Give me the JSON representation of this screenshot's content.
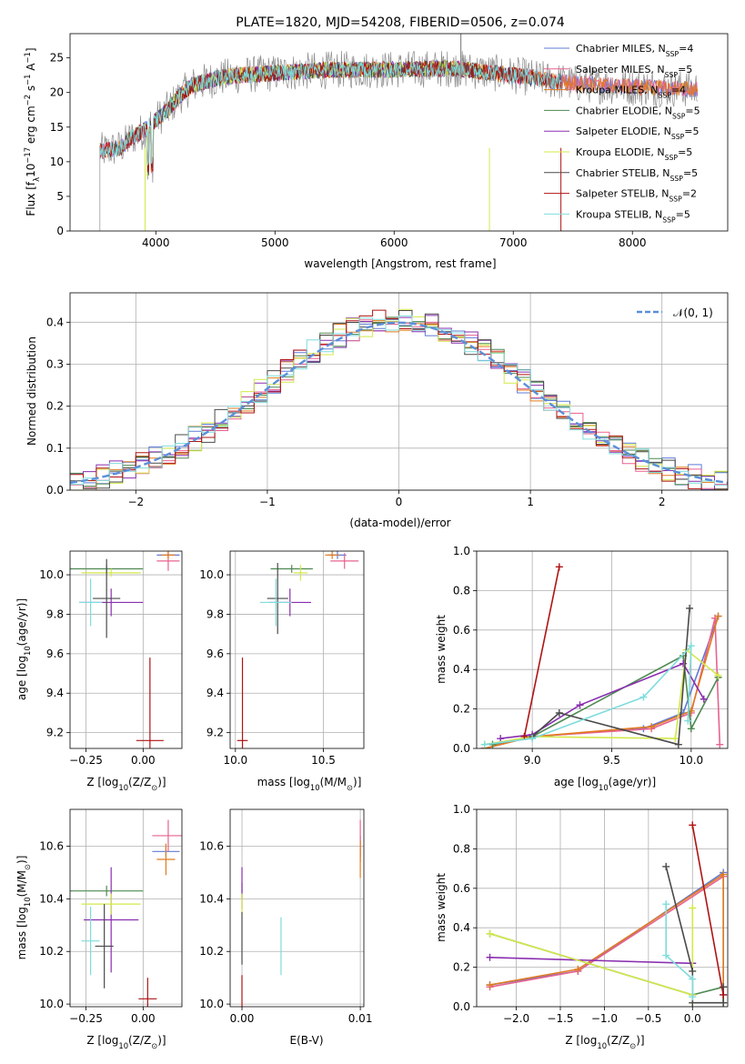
{
  "figure_title": "PLATE=1820, MJD=54208, FIBERID=0506, z=0.074",
  "colors": {
    "Chabrier MILES": "#5f7bd6",
    "Salpeter MILES": "#e8628f",
    "Kroupa MILES": "#e07b1f",
    "Chabrier ELODIE": "#4e8a52",
    "Salpeter ELODIE": "#8a2fb0",
    "Kroupa ELODIE": "#d4e84a",
    "Chabrier STELIB": "#4a4a4a",
    "Salpeter STELIB": "#b01313",
    "Kroupa STELIB": "#7fdcdc",
    "normal_curve": "#5b8fd9",
    "grid": "#b0b0b0"
  },
  "chart_data": [
    {
      "id": "spectrum",
      "type": "line",
      "title": "PLATE=1820, MJD=54208, FIBERID=0506, z=0.074",
      "xlabel": "wavelength [Angstrom, rest frame]",
      "ylabel_parts": [
        "Flux [f",
        "λ",
        "10",
        "−17",
        " erg cm",
        "−2",
        " s",
        "−1",
        " A",
        "−1",
        "]"
      ],
      "xlim": [
        3280,
        8800
      ],
      "ylim": [
        0,
        28.5
      ],
      "xticks": [
        4000,
        5000,
        6000,
        7000,
        8000
      ],
      "yticks": [
        0,
        5,
        10,
        15,
        20,
        25
      ],
      "grid": false,
      "legend_position": "top-right",
      "legend": [
        {
          "model": "Chabrier MILES",
          "nssp": "4"
        },
        {
          "model": "Salpeter MILES",
          "nssp": "5"
        },
        {
          "model": "Kroupa MILES",
          "nssp": "4"
        },
        {
          "model": "Chabrier ELODIE",
          "nssp": "5"
        },
        {
          "model": "Salpeter ELODIE",
          "nssp": "5"
        },
        {
          "model": "Kroupa ELODIE",
          "nssp": "5"
        },
        {
          "model": "Chabrier STELIB",
          "nssp": "5"
        },
        {
          "model": "Salpeter STELIB",
          "nssp": "2"
        },
        {
          "model": "Kroupa STELIB",
          "nssp": "5"
        }
      ],
      "continuum_x": [
        3530,
        3700,
        3800,
        3900,
        4000,
        4100,
        4200,
        4300,
        4500,
        4700,
        5000,
        5500,
        6000,
        6500,
        7000,
        7500,
        8000,
        8500
      ],
      "continuum_y": [
        11.5,
        12.0,
        13.5,
        14.5,
        16.0,
        17.5,
        19.5,
        21.0,
        22.0,
        22.5,
        22.8,
        23.3,
        23.3,
        23.5,
        22.5,
        21.3,
        20.8,
        20.5
      ],
      "range_x": {
        "Chabrier MILES": [
          3530,
          8550
        ],
        "Salpeter MILES": [
          3530,
          8550
        ],
        "Kroupa MILES": [
          3530,
          8550
        ],
        "Chabrier ELODIE": [
          3910,
          6800
        ],
        "Salpeter ELODIE": [
          3910,
          6800
        ],
        "Kroupa ELODIE": [
          3910,
          6800
        ],
        "Chabrier STELIB": [
          3530,
          7400
        ],
        "Salpeter STELIB": [
          3530,
          7400
        ],
        "Kroupa STELIB": [
          3530,
          7400
        ]
      }
    },
    {
      "id": "residuals",
      "type": "line",
      "xlabel": "(data-model)/error",
      "ylabel": "Normed distribution",
      "xlim": [
        -2.5,
        2.5
      ],
      "ylim": [
        0,
        0.47
      ],
      "xticks": [
        -2,
        -1,
        0,
        1,
        2
      ],
      "yticks": [
        0.0,
        0.1,
        0.2,
        0.3,
        0.4
      ],
      "grid": true,
      "legend_position": "top-right",
      "legend": [
        {
          "label": "𝒩(0, 1)",
          "style": "dashed"
        }
      ],
      "bin_width": 0.1
    },
    {
      "id": "age_vs_Z",
      "type": "scatter",
      "xlabel_parts": [
        "Z [log",
        "10",
        "(Z/Z",
        "⊙",
        ")]"
      ],
      "ylabel_parts": [
        "age  [log",
        "10",
        "(age/yr)]"
      ],
      "xlim": [
        -0.32,
        0.17
      ],
      "ylim": [
        9.12,
        10.12
      ],
      "xticks": [
        -0.25,
        0.0
      ],
      "xticklabels": [
        "−0.25",
        "0.00"
      ],
      "yticks": [
        9.2,
        9.4,
        9.6,
        9.8,
        10.0
      ],
      "grid": true,
      "points": [
        {
          "model": "Chabrier MILES",
          "x": 0.11,
          "xerr": 0.05,
          "y": 10.1,
          "yerr": 0.01
        },
        {
          "model": "Salpeter MILES",
          "x": 0.11,
          "xerr": 0.05,
          "y": 10.07,
          "yerr": 0.05
        },
        {
          "model": "Kroupa MILES",
          "x": 0.11,
          "xerr": 0.03,
          "y": 10.1,
          "yerr": 0.02
        },
        {
          "model": "Chabrier ELODIE",
          "x": -0.16,
          "xerr": 0.16,
          "y": 10.03,
          "yerr": 0.02
        },
        {
          "model": "Salpeter ELODIE",
          "x": -0.14,
          "xerr": 0.14,
          "y": 9.86,
          "yerr": 0.07
        },
        {
          "model": "Kroupa ELODIE",
          "x": -0.14,
          "xerr": 0.13,
          "y": 10.01,
          "yerr": 0.02
        },
        {
          "model": "Chabrier STELIB",
          "x": -0.16,
          "xerr": 0.06,
          "y": 9.88,
          "yerr": 0.2
        },
        {
          "model": "Salpeter STELIB",
          "x": 0.03,
          "xerr": 0.06,
          "y": 9.16,
          "yerr": 0.42
        },
        {
          "model": "Kroupa STELIB",
          "x": -0.23,
          "xerr": 0.05,
          "y": 9.86,
          "yerr": 0.12
        }
      ]
    },
    {
      "id": "age_vs_mass",
      "type": "scatter",
      "xlabel_parts": [
        "mass [log",
        "10",
        "(M/M",
        "⊙",
        ")]"
      ],
      "xlim": [
        9.97,
        10.73
      ],
      "ylim": [
        9.12,
        10.12
      ],
      "xticks": [
        10.0,
        10.5
      ],
      "xticklabels": [
        "10.0",
        "10.5"
      ],
      "yticks": [
        9.2,
        9.4,
        9.6,
        9.8,
        10.0
      ],
      "grid": true,
      "points": [
        {
          "model": "Chabrier MILES",
          "x": 10.58,
          "xerr": 0.05,
          "y": 10.1,
          "yerr": 0.02
        },
        {
          "model": "Salpeter MILES",
          "x": 10.62,
          "xerr": 0.08,
          "y": 10.07,
          "yerr": 0.04
        },
        {
          "model": "Kroupa MILES",
          "x": 10.55,
          "xerr": 0.04,
          "y": 10.1,
          "yerr": 0.02
        },
        {
          "model": "Chabrier ELODIE",
          "x": 10.32,
          "xerr": 0.12,
          "y": 10.03,
          "yerr": 0.02
        },
        {
          "model": "Salpeter ELODIE",
          "x": 10.31,
          "xerr": 0.12,
          "y": 9.86,
          "yerr": 0.07
        },
        {
          "model": "Kroupa ELODIE",
          "x": 10.37,
          "xerr": 0.04,
          "y": 10.01,
          "yerr": 0.04
        },
        {
          "model": "Chabrier STELIB",
          "x": 10.24,
          "xerr": 0.06,
          "y": 9.88,
          "yerr": 0.18
        },
        {
          "model": "Salpeter STELIB",
          "x": 10.04,
          "xerr": 0.03,
          "y": 9.16,
          "yerr": 0.42
        },
        {
          "model": "Kroupa STELIB",
          "x": 10.23,
          "xerr": 0.09,
          "y": 9.86,
          "yerr": 0.12
        }
      ]
    },
    {
      "id": "massweight_vs_age",
      "type": "line",
      "xlabel_parts": [
        "age  [log",
        "10",
        "(age/yr)]"
      ],
      "ylabel": "mass weight",
      "xlim": [
        8.65,
        10.23
      ],
      "ylim": [
        0,
        1.0
      ],
      "xticks": [
        9.0,
        9.5,
        10.0
      ],
      "xticklabels": [
        "9.0",
        "9.5",
        "10.0"
      ],
      "yticks": [
        0.0,
        0.2,
        0.4,
        0.6,
        0.8,
        1.0
      ],
      "grid": true,
      "series": [
        {
          "model": "Chabrier MILES",
          "x": [
            8.7,
            9.0,
            9.7,
            9.95,
            10.17
          ],
          "y": [
            0.0,
            0.06,
            0.1,
            0.18,
            0.67
          ]
        },
        {
          "model": "Salpeter MILES",
          "x": [
            8.7,
            9.0,
            9.75,
            10.0,
            10.15,
            10.18
          ],
          "y": [
            0.0,
            0.06,
            0.1,
            0.18,
            0.66,
            0.02
          ]
        },
        {
          "model": "Kroupa MILES",
          "x": [
            8.7,
            9.0,
            9.75,
            10.0,
            10.17
          ],
          "y": [
            0.0,
            0.06,
            0.11,
            0.19,
            0.67
          ]
        },
        {
          "model": "Chabrier ELODIE",
          "x": [
            8.75,
            9.0,
            9.95,
            10.0,
            10.17
          ],
          "y": [
            0.02,
            0.06,
            0.47,
            0.1,
            0.36
          ]
        },
        {
          "model": "Salpeter ELODIE",
          "x": [
            8.8,
            9.0,
            9.3,
            9.95,
            10.08
          ],
          "y": [
            0.05,
            0.07,
            0.22,
            0.43,
            0.25
          ]
        },
        {
          "model": "Kroupa ELODIE",
          "x": [
            8.7,
            9.0,
            9.9,
            9.97,
            10.17
          ],
          "y": [
            0.02,
            0.06,
            0.05,
            0.5,
            0.37
          ]
        },
        {
          "model": "Chabrier STELIB",
          "x": [
            9.0,
            9.17,
            9.92,
            9.99
          ],
          "y": [
            0.06,
            0.18,
            0.02,
            0.71
          ]
        },
        {
          "model": "Salpeter STELIB",
          "x": [
            8.95,
            9.17
          ],
          "y": [
            0.06,
            0.92
          ]
        },
        {
          "model": "Kroupa STELIB",
          "x": [
            8.7,
            9.0,
            9.7,
            10.0,
            9.98
          ],
          "y": [
            0.02,
            0.05,
            0.26,
            0.52,
            0.14
          ]
        }
      ]
    },
    {
      "id": "mass_vs_Z",
      "type": "scatter",
      "xlabel_parts": [
        "Z [log",
        "10",
        "(Z/Z",
        "⊙",
        ")]"
      ],
      "ylabel_parts": [
        "mass [log",
        "10",
        "(M/M",
        "⊙",
        ")]"
      ],
      "xlim": [
        -0.32,
        0.17
      ],
      "ylim": [
        9.99,
        10.74
      ],
      "xticks": [
        -0.25,
        0.0
      ],
      "xticklabels": [
        "−0.25",
        "0.00"
      ],
      "yticks": [
        10.0,
        10.2,
        10.4,
        10.6
      ],
      "grid": true,
      "points": [
        {
          "model": "Chabrier MILES",
          "x": 0.1,
          "xerr": 0.06,
          "y": 10.58,
          "yerr": 0.02
        },
        {
          "model": "Salpeter MILES",
          "x": 0.11,
          "xerr": 0.07,
          "y": 10.64,
          "yerr": 0.06
        },
        {
          "model": "Kroupa MILES",
          "x": 0.1,
          "xerr": 0.04,
          "y": 10.55,
          "yerr": 0.06
        },
        {
          "model": "Chabrier ELODIE",
          "x": -0.16,
          "xerr": 0.16,
          "y": 10.43,
          "yerr": 0.02
        },
        {
          "model": "Salpeter ELODIE",
          "x": -0.14,
          "xerr": 0.12,
          "y": 10.32,
          "yerr": 0.2
        },
        {
          "model": "Kroupa ELODIE",
          "x": -0.14,
          "xerr": 0.13,
          "y": 10.38,
          "yerr": 0.04
        },
        {
          "model": "Chabrier STELIB",
          "x": -0.17,
          "xerr": 0.04,
          "y": 10.22,
          "yerr": 0.16
        },
        {
          "model": "Salpeter STELIB",
          "x": 0.02,
          "xerr": 0.04,
          "y": 10.02,
          "yerr": 0.08
        },
        {
          "model": "Kroupa STELIB",
          "x": -0.23,
          "xerr": 0.04,
          "y": 10.24,
          "yerr": 0.13
        }
      ]
    },
    {
      "id": "mass_vs_ebv",
      "type": "scatter",
      "xlabel": "E(B-V)",
      "xlim": [
        -0.001,
        0.0103
      ],
      "ylim": [
        9.99,
        10.74
      ],
      "xticks": [
        0.0,
        0.01
      ],
      "xticklabels": [
        "0.00",
        "0.01"
      ],
      "yticks": [
        10.0,
        10.2,
        10.4,
        10.6
      ],
      "grid": true,
      "points": [
        {
          "model": "Chabrier MILES",
          "x": 0.01,
          "xerr": 0,
          "y": 10.6,
          "yerr": 0.04
        },
        {
          "model": "Salpeter MILES",
          "x": 0.01,
          "xerr": 0,
          "y": 10.62,
          "yerr": 0.08
        },
        {
          "model": "Kroupa MILES",
          "x": 0.01,
          "xerr": 0,
          "y": 10.55,
          "yerr": 0.07
        },
        {
          "model": "Chabrier ELODIE",
          "x": 0.0,
          "xerr": 0,
          "y": 10.43,
          "yerr": 0.03
        },
        {
          "model": "Salpeter ELODIE",
          "x": 0.0,
          "xerr": 0,
          "y": 10.44,
          "yerr": 0.08
        },
        {
          "model": "Kroupa ELODIE",
          "x": 0.0,
          "xerr": 0,
          "y": 10.38,
          "yerr": 0.04
        },
        {
          "model": "Chabrier STELIB",
          "x": 0.0,
          "xerr": 0,
          "y": 10.25,
          "yerr": 0.1
        },
        {
          "model": "Salpeter STELIB",
          "x": 0.0,
          "xerr": 0,
          "y": 10.05,
          "yerr": 0.06
        },
        {
          "model": "Kroupa STELIB",
          "x": 0.0033,
          "xerr": 0,
          "y": 10.22,
          "yerr": 0.11
        }
      ]
    },
    {
      "id": "massweight_vs_Z",
      "type": "line",
      "xlabel_parts": [
        "Z [log",
        "10",
        "(Z/Z",
        "⊙",
        ")]"
      ],
      "ylabel": "mass weight",
      "xlim": [
        -2.45,
        0.4
      ],
      "ylim": [
        0,
        1.0
      ],
      "xticks": [
        -2.0,
        -1.5,
        -1.0,
        -0.5,
        0.0
      ],
      "xticklabels": [
        "−2.0",
        "−1.5",
        "−1.0",
        "−0.5",
        "0.0"
      ],
      "yticks": [
        0.0,
        0.2,
        0.4,
        0.6,
        0.8,
        1.0
      ],
      "grid": true,
      "series": [
        {
          "model": "Chabrier MILES",
          "x": [
            -2.3,
            -1.3,
            0.35,
            0.35
          ],
          "y": [
            0.11,
            0.18,
            0.68,
            0.06
          ]
        },
        {
          "model": "Salpeter MILES",
          "x": [
            -2.3,
            -1.3,
            0.35
          ],
          "y": [
            0.1,
            0.18,
            0.66
          ]
        },
        {
          "model": "Kroupa MILES",
          "x": [
            -2.3,
            -1.3,
            0.35,
            0.35
          ],
          "y": [
            0.11,
            0.19,
            0.67,
            0.02
          ]
        },
        {
          "model": "Chabrier ELODIE",
          "x": [
            -2.3,
            0.0,
            0.35,
            0.35
          ],
          "y": [
            0.37,
            0.06,
            0.1,
            0.02
          ]
        },
        {
          "model": "Salpeter ELODIE",
          "x": [
            -2.3,
            0.0
          ],
          "y": [
            0.25,
            0.22
          ]
        },
        {
          "model": "Kroupa ELODIE",
          "x": [
            -2.3,
            0.0,
            0.0,
            0.0
          ],
          "y": [
            0.37,
            0.06,
            0.5,
            0.02
          ]
        },
        {
          "model": "Chabrier STELIB",
          "x": [
            -0.3,
            0.0,
            0.0,
            0.35,
            0.35
          ],
          "y": [
            0.71,
            0.18,
            0.02,
            0.02,
            0.1
          ]
        },
        {
          "model": "Salpeter STELIB",
          "x": [
            0.0,
            0.35
          ],
          "y": [
            0.92,
            0.06
          ]
        },
        {
          "model": "Kroupa STELIB",
          "x": [
            -0.3,
            -0.3,
            0.0,
            0.0
          ],
          "y": [
            0.52,
            0.26,
            0.14,
            0.05
          ]
        }
      ]
    }
  ]
}
